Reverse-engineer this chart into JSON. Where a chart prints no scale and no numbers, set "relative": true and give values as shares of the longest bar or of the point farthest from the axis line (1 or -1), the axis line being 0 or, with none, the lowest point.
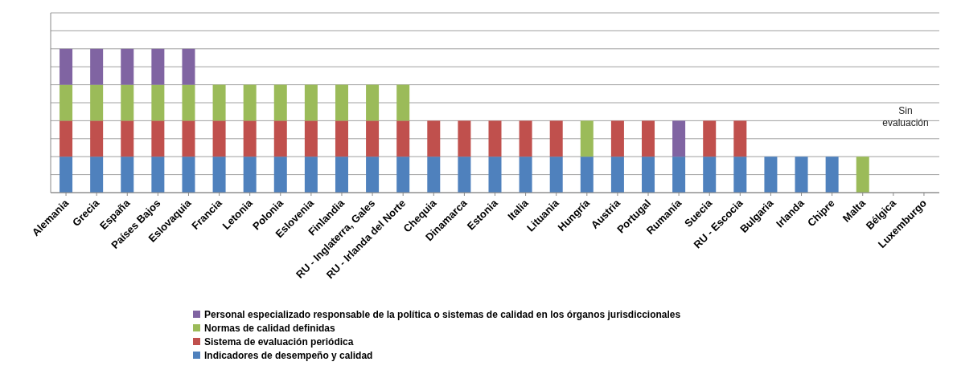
{
  "chart_data": {
    "type": "bar",
    "stacked": true,
    "relative": true,
    "grid": true,
    "legend": "bottom",
    "categories": [
      "Alemania",
      "Grecia",
      "España",
      "Países Bajos",
      "Eslovaquia",
      "Francia",
      "Letonia",
      "Polonia",
      "Eslovenia",
      "Finlandia",
      "RU - Inglaterra, Gales",
      "RU - Irlanda del Norte",
      "Chequia",
      "Dinamarca",
      "Estonia",
      "Italia",
      "Lituania",
      "Hungría",
      "Austria",
      "Portugal",
      "Rumanía",
      "Suecia",
      "RU - Escocia",
      "Bulgaria",
      "Irlanda",
      "Chipre",
      "Malta",
      "Bélgica",
      "Luxemburgo"
    ],
    "series": [
      {
        "name": "Indicadores de desempeño y calidad",
        "color": "#4f81bd",
        "values": [
          0.25,
          0.25,
          0.25,
          0.25,
          0.25,
          0.25,
          0.25,
          0.25,
          0.25,
          0.25,
          0.25,
          0.25,
          0.25,
          0.25,
          0.25,
          0.25,
          0.25,
          0.25,
          0.25,
          0.25,
          0.25,
          0.25,
          0.25,
          0.25,
          0.25,
          0.25,
          0,
          0,
          0
        ]
      },
      {
        "name": "Sistema de evaluación periódica",
        "color": "#c0504d",
        "values": [
          0.25,
          0.25,
          0.25,
          0.25,
          0.25,
          0.25,
          0.25,
          0.25,
          0.25,
          0.25,
          0.25,
          0.25,
          0.25,
          0.25,
          0.25,
          0.25,
          0.25,
          0,
          0.25,
          0.25,
          0,
          0.25,
          0.25,
          0,
          0,
          0,
          0,
          0,
          0
        ]
      },
      {
        "name": "Normas de calidad definidas",
        "color": "#9bbb59",
        "values": [
          0.25,
          0.25,
          0.25,
          0.25,
          0.25,
          0.25,
          0.25,
          0.25,
          0.25,
          0.25,
          0.25,
          0.25,
          0,
          0,
          0,
          0,
          0,
          0.25,
          0,
          0,
          0,
          0,
          0,
          0,
          0,
          0,
          0.25,
          0,
          0
        ]
      },
      {
        "name": "Personal especializado responsable de la política o sistemas de calidad en los órganos jurisdiccionales",
        "color": "#8064a2",
        "values": [
          0.25,
          0.25,
          0.25,
          0.25,
          0.25,
          0,
          0,
          0,
          0,
          0,
          0,
          0,
          0,
          0,
          0,
          0,
          0,
          0,
          0,
          0,
          0.25,
          0,
          0,
          0,
          0,
          0,
          0,
          0,
          0
        ]
      }
    ],
    "annotations": [
      "Sin evaluación"
    ]
  }
}
